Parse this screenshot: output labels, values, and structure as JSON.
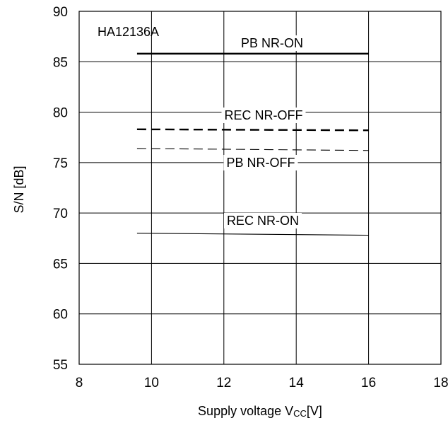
{
  "chart_data": {
    "type": "line",
    "annotation": "HA12136A",
    "xlabel": {
      "main": "Supply voltage V",
      "sub": "CC",
      "unit": "[V]"
    },
    "ylabel": "S/N [dB]",
    "xlim": [
      8,
      18
    ],
    "ylim": [
      55,
      90
    ],
    "x_ticks": [
      8,
      10,
      12,
      14,
      16,
      18
    ],
    "y_ticks": [
      55,
      60,
      65,
      70,
      75,
      80,
      85,
      90
    ],
    "grid": true,
    "series": [
      {
        "name": "PB NR-ON",
        "style": "solid-thick",
        "x": [
          9.6,
          16
        ],
        "y": [
          85.8,
          85.8
        ]
      },
      {
        "name": "REC NR-OFF",
        "style": "dashed-thick",
        "x": [
          9.6,
          16
        ],
        "y": [
          78.3,
          78.2
        ]
      },
      {
        "name": "PB NR-OFF",
        "style": "dashed-thin",
        "x": [
          9.6,
          16
        ],
        "y": [
          76.4,
          76.2
        ]
      },
      {
        "name": "REC NR-ON",
        "style": "solid-thin",
        "x": [
          9.6,
          16
        ],
        "y": [
          68.0,
          67.8
        ]
      }
    ]
  }
}
